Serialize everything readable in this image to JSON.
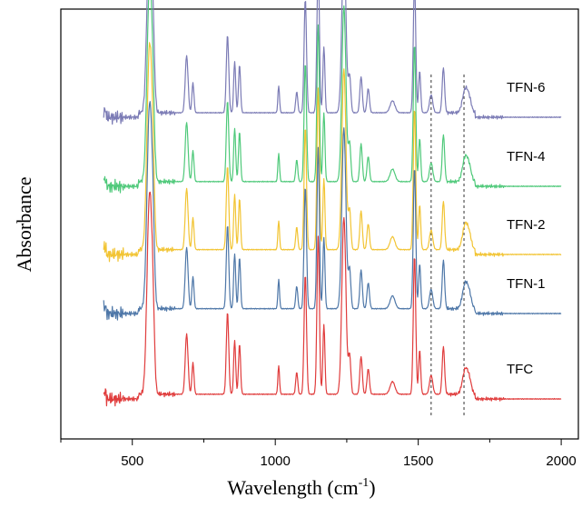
{
  "chart_data": {
    "type": "line",
    "title": "",
    "xlabel": "Wavelength (cm",
    "xlabel_sup": "-1",
    "xlabel_suffix": ")",
    "ylabel": "Absorbance",
    "xlim": [
      250,
      2060
    ],
    "xticks": [
      500,
      1000,
      1500,
      2000
    ],
    "xtick_labels": [
      "500",
      "1000",
      "1500",
      "2000"
    ],
    "grid": false,
    "legend": "inline-right",
    "reference_lines_x": [
      1545,
      1660
    ],
    "series": [
      {
        "name": "TFN-6",
        "color": "#7b7bb5",
        "offset": 4,
        "scale": 0.93
      },
      {
        "name": "TFN-4",
        "color": "#4fc97a",
        "offset": 3,
        "scale": 0.97
      },
      {
        "name": "TFN-2",
        "color": "#f2c433",
        "offset": 2,
        "scale": 1.0
      },
      {
        "name": "TFN-1",
        "color": "#4e77a8",
        "offset": 1,
        "scale": 1.0
      },
      {
        "name": "TFC",
        "color": "#e03c3c",
        "offset": 0,
        "scale": 0.98
      }
    ]
  }
}
